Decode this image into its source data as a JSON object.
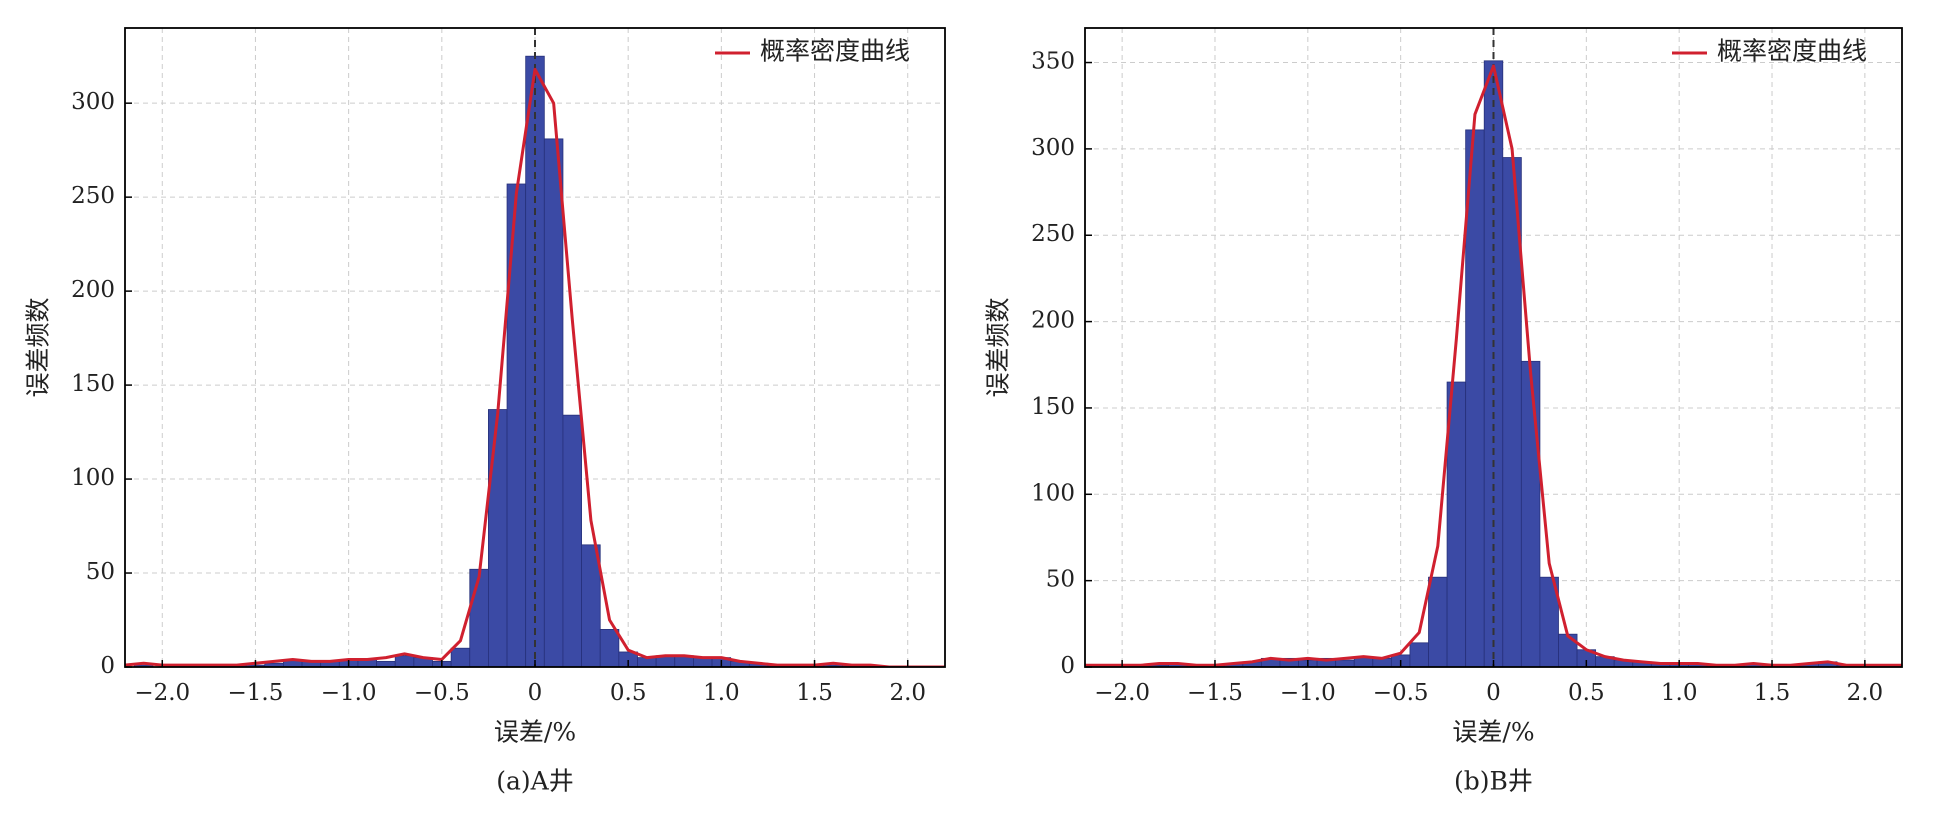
{
  "chart_data": [
    {
      "type": "histogram",
      "caption": "(a)A井",
      "xlabel": "误差/%",
      "ylabel": "误差频数",
      "bins": [
        -2.15,
        -2.05,
        -1.95,
        -1.85,
        -1.75,
        -1.65,
        -1.55,
        -1.45,
        -1.35,
        -1.25,
        -1.15,
        -1.05,
        -0.95,
        -0.85,
        -0.75,
        -0.65,
        -0.55,
        -0.45,
        -0.35,
        -0.25,
        -0.15,
        -0.05,
        0.05,
        0.15,
        0.25,
        0.35,
        0.45,
        0.55,
        0.65,
        0.75,
        0.85,
        0.95,
        1.05,
        1.15,
        1.25,
        1.35,
        1.45,
        1.55,
        1.65,
        1.75,
        1.85,
        1.95,
        2.05,
        2.15
      ],
      "counts": [
        1,
        0,
        0,
        1,
        0,
        1,
        1,
        2,
        4,
        3,
        3,
        4,
        4,
        3,
        6,
        5,
        3,
        10,
        52,
        137,
        257,
        325,
        281,
        134,
        65,
        20,
        8,
        5,
        6,
        6,
        5,
        5,
        3,
        2,
        1,
        1,
        1,
        1,
        1,
        0,
        0,
        0,
        0
      ],
      "color": "#3b4aa5",
      "edgecolor": "#26307a",
      "series": [
        {
          "name": "概率密度曲线",
          "color": "#d0202f",
          "x": [
            -2.2,
            -2.1,
            -2.0,
            -1.9,
            -1.8,
            -1.7,
            -1.6,
            -1.5,
            -1.4,
            -1.3,
            -1.2,
            -1.1,
            -1.0,
            -0.9,
            -0.8,
            -0.7,
            -0.6,
            -0.5,
            -0.4,
            -0.3,
            -0.2,
            -0.1,
            0,
            0.1,
            0.2,
            0.3,
            0.4,
            0.5,
            0.6,
            0.7,
            0.8,
            0.9,
            1.0,
            1.1,
            1.2,
            1.3,
            1.4,
            1.5,
            1.6,
            1.7,
            1.8,
            1.9,
            2.0,
            2.1,
            2.2
          ],
          "values": [
            1,
            2,
            1,
            1,
            1,
            1,
            1,
            2,
            3,
            4,
            3,
            3,
            4,
            4,
            5,
            7,
            5,
            4,
            14,
            48,
            135,
            252,
            318,
            300,
            185,
            78,
            25,
            9,
            5,
            6,
            6,
            5,
            5,
            3,
            2,
            1,
            1,
            1,
            2,
            1,
            1,
            0,
            0,
            0,
            0
          ]
        }
      ],
      "reference_line": 0,
      "legend": "upper right",
      "grid": true,
      "xlim": [
        -2.2,
        2.2
      ],
      "ylim": [
        0,
        340
      ],
      "xticks": [
        {
          "value": -2,
          "label": "−2.0"
        },
        {
          "value": -1.5,
          "label": "−1.5"
        },
        {
          "value": -1,
          "label": "−1.0"
        },
        {
          "value": -0.5,
          "label": "−0.5"
        },
        0,
        0.5,
        {
          "value": 1,
          "label": "1.0"
        },
        1.5,
        {
          "value": 2,
          "label": "2.0"
        }
      ],
      "yticks": [
        0,
        50,
        100,
        150,
        200,
        250,
        300
      ]
    },
    {
      "type": "histogram",
      "caption": "(b)B井",
      "xlabel": "误差/%",
      "ylabel": "误差频数",
      "bins": [
        -2.15,
        -2.05,
        -1.95,
        -1.85,
        -1.75,
        -1.65,
        -1.55,
        -1.45,
        -1.35,
        -1.25,
        -1.15,
        -1.05,
        -0.95,
        -0.85,
        -0.75,
        -0.65,
        -0.55,
        -0.45,
        -0.35,
        -0.25,
        -0.15,
        -0.05,
        0.05,
        0.15,
        0.25,
        0.35,
        0.45,
        0.55,
        0.65,
        0.75,
        0.85,
        0.95,
        1.05,
        1.15,
        1.25,
        1.35,
        1.45,
        1.55,
        1.65,
        1.75,
        1.85,
        1.95,
        2.05,
        2.15
      ],
      "counts": [
        1,
        1,
        1,
        1,
        2,
        1,
        1,
        2,
        3,
        5,
        5,
        4,
        5,
        4,
        6,
        5,
        7,
        14,
        52,
        165,
        311,
        351,
        295,
        177,
        52,
        19,
        10,
        6,
        4,
        3,
        2,
        2,
        2,
        1,
        1,
        2,
        1,
        1,
        2,
        3,
        1,
        1,
        1
      ],
      "color": "#3b4aa5",
      "edgecolor": "#26307a",
      "series": [
        {
          "name": "概率密度曲线",
          "color": "#d0202f",
          "x": [
            -2.2,
            -2.1,
            -2.0,
            -1.9,
            -1.8,
            -1.7,
            -1.6,
            -1.5,
            -1.4,
            -1.3,
            -1.2,
            -1.1,
            -1.0,
            -0.9,
            -0.8,
            -0.7,
            -0.6,
            -0.5,
            -0.4,
            -0.3,
            -0.2,
            -0.1,
            0,
            0.1,
            0.2,
            0.3,
            0.4,
            0.5,
            0.6,
            0.7,
            0.8,
            0.9,
            1.0,
            1.1,
            1.2,
            1.3,
            1.4,
            1.5,
            1.6,
            1.7,
            1.8,
            1.9,
            2.0,
            2.1,
            2.2
          ],
          "values": [
            1,
            1,
            1,
            1,
            2,
            2,
            1,
            1,
            2,
            3,
            5,
            4,
            5,
            4,
            5,
            6,
            5,
            8,
            20,
            70,
            190,
            320,
            348,
            300,
            170,
            60,
            18,
            10,
            6,
            4,
            3,
            2,
            2,
            2,
            1,
            1,
            2,
            1,
            1,
            2,
            3,
            1,
            1,
            1,
            1
          ]
        }
      ],
      "reference_line": 0,
      "legend": "upper right",
      "grid": true,
      "xlim": [
        -2.2,
        2.2
      ],
      "ylim": [
        0,
        370
      ],
      "xticks": [
        {
          "value": -2,
          "label": "−2.0"
        },
        {
          "value": -1.5,
          "label": "−1.5"
        },
        {
          "value": -1,
          "label": "−1.0"
        },
        {
          "value": -0.5,
          "label": "−0.5"
        },
        0,
        0.5,
        {
          "value": 1,
          "label": "1.0"
        },
        1.5,
        {
          "value": 2,
          "label": "2.0"
        }
      ],
      "yticks": [
        0,
        50,
        100,
        150,
        200,
        250,
        300,
        350
      ]
    }
  ]
}
